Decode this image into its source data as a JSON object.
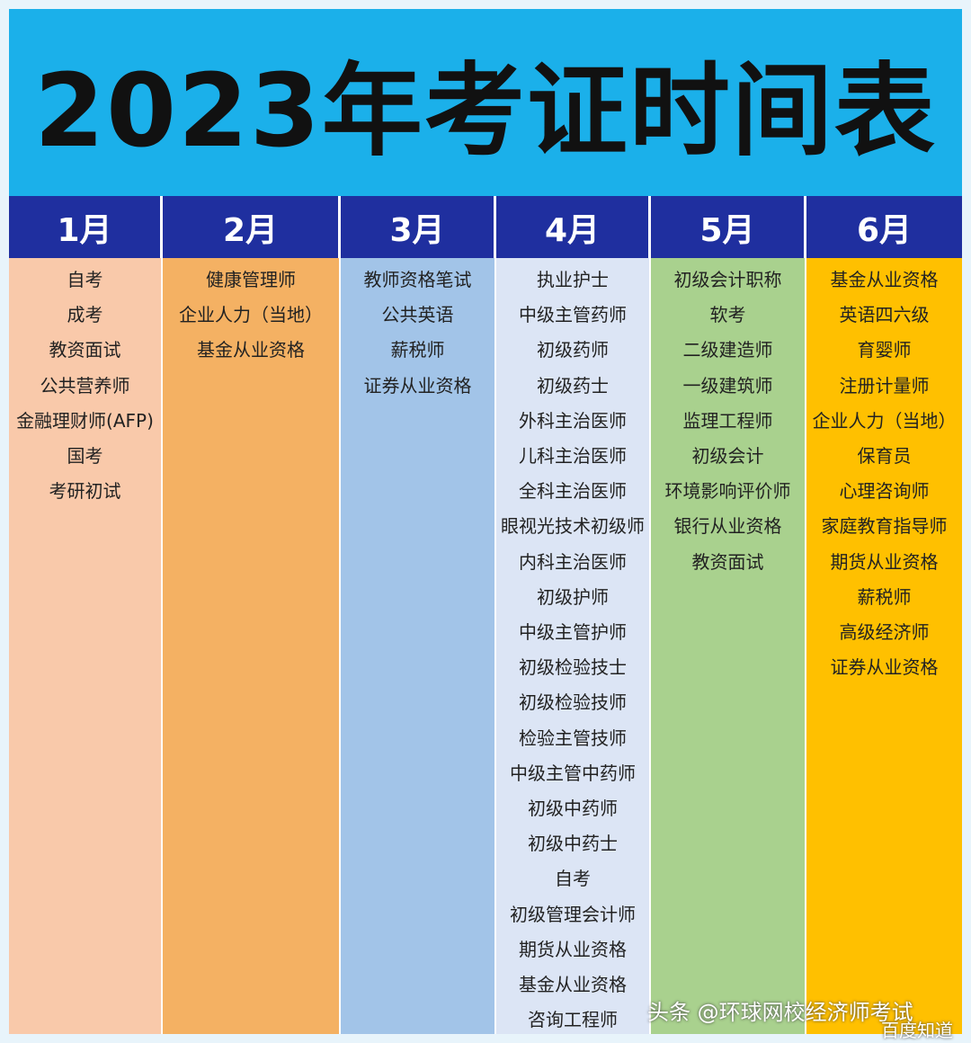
{
  "title": "2023年考证时间表",
  "table": {
    "columns": [
      {
        "header": "1月",
        "items": [
          "自考",
          "成考",
          "教资面试",
          "公共营养师",
          "金融理财师(AFP)",
          "国考",
          "考研初试"
        ]
      },
      {
        "header": "2月",
        "items": [
          "健康管理师",
          "企业人力（当地）",
          "基金从业资格"
        ]
      },
      {
        "header": "3月",
        "items": [
          "教师资格笔试",
          "公共英语",
          "薪税师",
          "证券从业资格"
        ]
      },
      {
        "header": "4月",
        "items": [
          "执业护士",
          "中级主管药师",
          "初级药师",
          "初级药士",
          "外科主治医师",
          "儿科主治医师",
          "全科主治医师",
          "眼视光技术初级师",
          "内科主治医师",
          "初级护师",
          "中级主管护师",
          "初级检验技士",
          "初级检验技师",
          "检验主管技师",
          "中级主管中药师",
          "初级中药师",
          "初级中药士",
          "自考",
          "初级管理会计师",
          "期货从业资格",
          "基金从业资格",
          "咨询工程师"
        ]
      },
      {
        "header": "5月",
        "items": [
          "初级会计职称",
          "软考",
          "二级建造师",
          "一级建筑师",
          "监理工程师",
          "初级会计",
          "环境影响评价师",
          "银行从业资格",
          "教资面试"
        ]
      },
      {
        "header": "6月",
        "items": [
          "基金从业资格",
          "英语四六级",
          "育婴师",
          "注册计量师",
          "企业人力（当地）",
          "保育员",
          "心理咨询师",
          "家庭教育指导师",
          "期货从业资格",
          "薪税师",
          "高级经济师",
          "证券从业资格"
        ]
      }
    ]
  },
  "watermarks": [
    "头条 @环球网校经济师考试",
    "百度知道"
  ]
}
